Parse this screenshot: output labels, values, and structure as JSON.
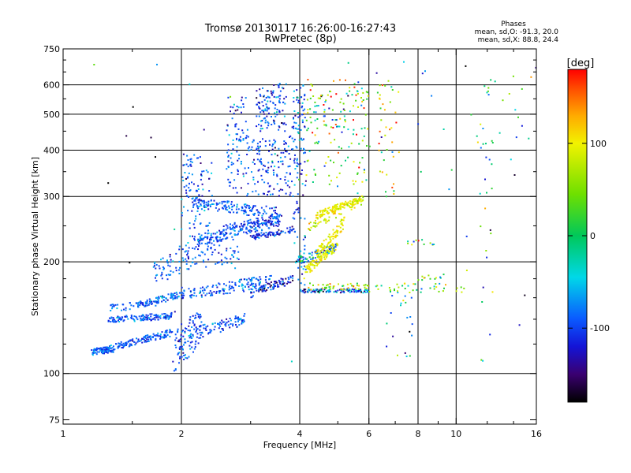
{
  "chart_data": {
    "type": "scatter",
    "title": "Tromsø 20130117 16:26:00-16:27:43",
    "subtitle": "RwPretec (8p)",
    "xlabel": "Frequency [MHz]",
    "ylabel": "Stationary phase Virtual Height [km]",
    "x_scale": "log",
    "y_scale": "log",
    "xlim": [
      1,
      16
    ],
    "ylim": [
      73,
      750
    ],
    "x_ticks": [
      {
        "value": 1,
        "label": "1"
      },
      {
        "value": 2,
        "label": "2"
      },
      {
        "value": 4,
        "label": "4"
      },
      {
        "value": 6,
        "label": "6"
      },
      {
        "value": 8,
        "label": "8"
      },
      {
        "value": 10,
        "label": "10"
      },
      {
        "value": 16,
        "label": "16"
      }
    ],
    "x_minor_ticks": [
      1.5,
      3,
      5,
      7,
      9,
      12,
      14
    ],
    "x_grid": [
      2,
      4,
      6,
      8,
      10
    ],
    "y_ticks": [
      {
        "value": 75,
        "label": "75"
      },
      {
        "value": 100,
        "label": "100"
      },
      {
        "value": 200,
        "label": "200"
      },
      {
        "value": 300,
        "label": "300"
      },
      {
        "value": 400,
        "label": "400"
      },
      {
        "value": 500,
        "label": "500"
      },
      {
        "value": 600,
        "label": "600"
      },
      {
        "value": 750,
        "label": "750"
      }
    ],
    "y_minor_ticks": [
      120,
      140,
      160,
      180,
      250,
      350,
      450,
      550,
      650,
      700
    ],
    "y_grid": [
      100,
      200,
      300,
      400,
      500,
      600
    ],
    "grid": true,
    "legend": {
      "heading": "Phases",
      "lines": [
        "mean, sd,O: -91.3, 20.0",
        "mean, sd,X:  88.8, 24.4"
      ]
    },
    "colorbar": {
      "label": "[deg]",
      "range": [
        -180,
        180
      ],
      "ticks": [
        {
          "value": 100,
          "label": "100"
        },
        {
          "value": 0,
          "label": "0"
        },
        {
          "value": -100,
          "label": "-100"
        }
      ],
      "stops": [
        {
          "value": -180,
          "color": "#000000"
        },
        {
          "value": -150,
          "color": "#3a0070"
        },
        {
          "value": -120,
          "color": "#1414d6"
        },
        {
          "value": -90,
          "color": "#0a5aff"
        },
        {
          "value": -45,
          "color": "#00d8e8"
        },
        {
          "value": 0,
          "color": "#00c85a"
        },
        {
          "value": 45,
          "color": "#6ee000"
        },
        {
          "value": 100,
          "color": "#f2f200"
        },
        {
          "value": 130,
          "color": "#ffaa00"
        },
        {
          "value": 160,
          "color": "#ff4a00"
        },
        {
          "value": 180,
          "color": "#ff0000"
        }
      ]
    },
    "series": [
      {
        "f": [
          1.18,
          1.35
        ],
        "h": [
          [
            112,
            117
          ],
          [
            114,
            118
          ]
        ],
        "n": 70,
        "phase": -92,
        "sd": 20
      },
      {
        "f": [
          1.25,
          1.9
        ],
        "h": [
          [
            113,
            118
          ],
          [
            126,
            132
          ]
        ],
        "n": 150,
        "phase": -93,
        "sd": 20
      },
      {
        "f": [
          1.3,
          1.9
        ],
        "h": [
          [
            137,
            142
          ],
          [
            140,
            146
          ]
        ],
        "n": 130,
        "phase": -92,
        "sd": 20
      },
      {
        "f": [
          1.55,
          2.05
        ],
        "h": [
          [
            150,
            156
          ],
          [
            160,
            168
          ]
        ],
        "n": 90,
        "phase": -90,
        "sd": 22
      },
      {
        "f": [
          1.3,
          1.75
        ],
        "h": [
          [
            146,
            153
          ],
          [
            152,
            158
          ]
        ],
        "n": 40,
        "phase": -91,
        "sd": 20
      },
      {
        "f": [
          1.9,
          2.25
        ],
        "h": [
          [
            100,
            130
          ],
          [
            118,
            150
          ]
        ],
        "n": 90,
        "phase": -95,
        "sd": 22
      },
      {
        "f": [
          2.0,
          2.9
        ],
        "h": [
          [
            120,
            130
          ],
          [
            135,
            145
          ]
        ],
        "n": 110,
        "phase": -92,
        "sd": 20
      },
      {
        "f": [
          1.7,
          2.3
        ],
        "h": [
          [
            170,
            200
          ],
          [
            200,
            240
          ]
        ],
        "n": 90,
        "phase": -90,
        "sd": 20
      },
      {
        "f": [
          2.0,
          3.4
        ],
        "h": [
          [
            158,
            168
          ],
          [
            170,
            185
          ]
        ],
        "n": 150,
        "phase": -90,
        "sd": 22
      },
      {
        "f": [
          2.2,
          3.6
        ],
        "h": [
          [
            220,
            235
          ],
          [
            250,
            268
          ]
        ],
        "n": 150,
        "phase": -95,
        "sd": 20
      },
      {
        "f": [
          2.1,
          3.5
        ],
        "h": [
          [
            280,
            300
          ],
          [
            260,
            280
          ]
        ],
        "n": 150,
        "phase": -92,
        "sd": 20
      },
      {
        "f": [
          2.5,
          3.6
        ],
        "h": [
          [
            235,
            250
          ],
          [
            255,
            270
          ]
        ],
        "n": 70,
        "phase": -100,
        "sd": 22
      },
      {
        "f": [
          2.0,
          2.4
        ],
        "h": [
          [
            230,
            390
          ],
          [
            230,
            390
          ]
        ],
        "n": 110,
        "phase": -85,
        "sd": 25
      },
      {
        "f": [
          2.3,
          2.8
        ],
        "h": [
          [
            190,
            240
          ],
          [
            200,
            250
          ]
        ],
        "n": 60,
        "phase": -88,
        "sd": 22
      },
      {
        "f": [
          3.0,
          3.85
        ],
        "h": [
          [
            160,
            168
          ],
          [
            175,
            185
          ]
        ],
        "n": 80,
        "phase": -118,
        "sd": 25
      },
      {
        "f": [
          3.0,
          3.9
        ],
        "h": [
          [
            228,
            236
          ],
          [
            240,
            250
          ]
        ],
        "n": 80,
        "phase": -110,
        "sd": 25
      },
      {
        "f": [
          3.1,
          3.85
        ],
        "h": [
          [
            300,
            420
          ],
          [
            300,
            440
          ]
        ],
        "n": 110,
        "phase": -98,
        "sd": 30
      },
      {
        "f": [
          3.1,
          3.7
        ],
        "h": [
          [
            450,
            580
          ],
          [
            450,
            620
          ]
        ],
        "n": 120,
        "phase": -100,
        "sd": 32
      },
      {
        "f": [
          2.6,
          3.2
        ],
        "h": [
          [
            300,
            420
          ],
          [
            300,
            460
          ]
        ],
        "n": 80,
        "phase": -92,
        "sd": 25
      },
      {
        "f": [
          2.6,
          2.95
        ],
        "h": [
          [
            420,
            560
          ],
          [
            420,
            560
          ]
        ],
        "n": 40,
        "phase": -100,
        "sd": 28
      },
      {
        "f": [
          3.85,
          4.15
        ],
        "h": [
          [
            165,
            600
          ],
          [
            165,
            600
          ]
        ],
        "n": 120,
        "phase": -90,
        "sd": 35
      },
      {
        "f": [
          4.0,
          6.0
        ],
        "h": [
          [
            165,
            169
          ],
          [
            165,
            169
          ]
        ],
        "n": 100,
        "phase": -80,
        "sd": 50
      },
      {
        "f": [
          3.9,
          5.0
        ],
        "h": [
          [
            195,
            205
          ],
          [
            215,
            225
          ]
        ],
        "n": 90,
        "phase": -60,
        "sd": 50
      },
      {
        "f": [
          4.1,
          5.0
        ],
        "h": [
          [
            180,
            192
          ],
          [
            215,
            230
          ]
        ],
        "n": 90,
        "phase": 100,
        "sd": 10
      },
      {
        "f": [
          4.4,
          5.2
        ],
        "h": [
          [
            205,
            215
          ],
          [
            245,
            265
          ]
        ],
        "n": 80,
        "phase": 98,
        "sd": 12
      },
      {
        "f": [
          4.4,
          5.8
        ],
        "h": [
          [
            262,
            272
          ],
          [
            290,
            302
          ]
        ],
        "n": 130,
        "phase": 97,
        "sd": 12
      },
      {
        "f": [
          4.2,
          5.8
        ],
        "h": [
          [
            240,
            255
          ],
          [
            285,
            300
          ]
        ],
        "n": 60,
        "phase": 90,
        "sd": 25
      },
      {
        "f": [
          4.1,
          6.0
        ],
        "h": [
          [
            330,
            620
          ],
          [
            300,
            620
          ]
        ],
        "n": 160,
        "phase": 30,
        "sd": 80
      },
      {
        "f": [
          4.2,
          6.0
        ],
        "h": [
          [
            168,
            175
          ],
          [
            168,
            175
          ]
        ],
        "n": 40,
        "phase": 80,
        "sd": 40
      },
      {
        "f": [
          6.3,
          7.2
        ],
        "h": [
          [
            300,
            620
          ],
          [
            300,
            620
          ]
        ],
        "n": 40,
        "phase": 80,
        "sd": 60
      },
      {
        "f": [
          6.0,
          10.5
        ],
        "h": [
          [
            165,
            175
          ],
          [
            165,
            175
          ]
        ],
        "n": 40,
        "phase": 20,
        "sd": 60
      },
      {
        "f": [
          7.5,
          9.0
        ],
        "h": [
          [
            222,
            230
          ],
          [
            222,
            230
          ]
        ],
        "n": 12,
        "phase": 30,
        "sd": 60
      },
      {
        "f": [
          8.0,
          9.5
        ],
        "h": [
          [
            178,
            185
          ],
          [
            178,
            185
          ]
        ],
        "n": 12,
        "phase": 40,
        "sd": 50
      },
      {
        "f": [
          6.5,
          7.8
        ],
        "h": [
          [
            110,
            170
          ],
          [
            110,
            170
          ]
        ],
        "n": 20,
        "phase": -40,
        "sd": 80
      },
      {
        "f": [
          11.5,
          12.5
        ],
        "h": [
          [
            80,
            600
          ],
          [
            80,
            600
          ]
        ],
        "n": 30,
        "phase": -20,
        "sd": 70
      },
      {
        "f": [
          10.5,
          15.8
        ],
        "h": [
          [
            400,
            650
          ],
          [
            400,
            650
          ]
        ],
        "n": 10,
        "phase": 40,
        "sd": 80
      },
      {
        "f": [
          1.05,
          16.0
        ],
        "h": [
          [
            90,
            700
          ],
          [
            90,
            700
          ]
        ],
        "n": 60,
        "phase": -60,
        "sd": 90
      }
    ]
  }
}
